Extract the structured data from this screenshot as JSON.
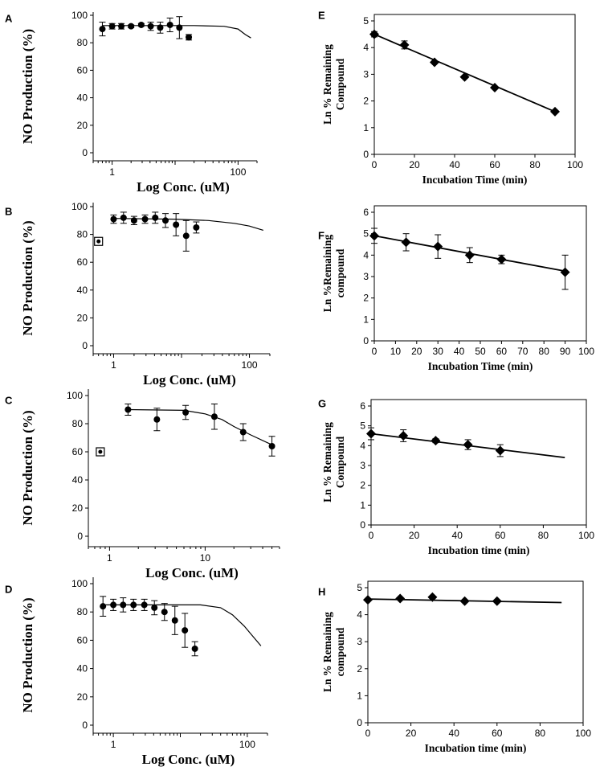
{
  "chart_data": [
    {
      "panel": "A",
      "type": "scatter",
      "xscale": "log",
      "xlabel": "Log  Conc.  (uM)",
      "ylabel": "NO  Production  (%)",
      "ylim": [
        0,
        100
      ],
      "yticks": [
        "0",
        "20",
        "40",
        "60",
        "80",
        "100"
      ],
      "xlim": [
        0.5,
        200
      ],
      "xticks": [
        {
          "v": 1,
          "label": "1"
        },
        {
          "v": 100,
          "label": "100"
        }
      ],
      "points": [
        {
          "x": 0.7,
          "y": 90,
          "err": 5
        },
        {
          "x": 1.0,
          "y": 92,
          "err": 2
        },
        {
          "x": 1.4,
          "y": 92,
          "err": 2
        },
        {
          "x": 2.0,
          "y": 92,
          "err": 1
        },
        {
          "x": 2.9,
          "y": 93,
          "err": 1
        },
        {
          "x": 4.1,
          "y": 92,
          "err": 3
        },
        {
          "x": 5.8,
          "y": 91,
          "err": 4
        },
        {
          "x": 8.3,
          "y": 93,
          "err": 5
        },
        {
          "x": 11.7,
          "y": 91,
          "err": 8
        },
        {
          "x": 16.5,
          "y": 84,
          "err": 2
        }
      ],
      "fit": [
        [
          0.7,
          92.5
        ],
        [
          20,
          92.5
        ],
        [
          60,
          92
        ],
        [
          100,
          90
        ],
        [
          130,
          86
        ],
        [
          160,
          83.5
        ]
      ],
      "control": null
    },
    {
      "panel": "B",
      "type": "scatter",
      "xscale": "log",
      "xlabel": "Log  Conc.  (uM)",
      "ylabel": "NO  Production  (%)",
      "ylim": [
        0,
        100
      ],
      "yticks": [
        "0",
        "20",
        "40",
        "60",
        "80",
        "100"
      ],
      "xlim": [
        0.5,
        200
      ],
      "xticks": [
        {
          "v": 1,
          "label": "1"
        },
        {
          "v": 100,
          "label": "100"
        }
      ],
      "points": [
        {
          "x": 1.0,
          "y": 91,
          "err": 3
        },
        {
          "x": 1.4,
          "y": 92,
          "err": 4
        },
        {
          "x": 2.0,
          "y": 90,
          "err": 3
        },
        {
          "x": 2.9,
          "y": 91,
          "err": 3
        },
        {
          "x": 4.1,
          "y": 92,
          "err": 4
        },
        {
          "x": 5.8,
          "y": 90,
          "err": 5
        },
        {
          "x": 8.3,
          "y": 87,
          "err": 8
        },
        {
          "x": 11.7,
          "y": 79,
          "err": 11
        },
        {
          "x": 16.5,
          "y": 85,
          "err": 4
        }
      ],
      "fit": [
        [
          1.0,
          91.5
        ],
        [
          8,
          91
        ],
        [
          25,
          90
        ],
        [
          60,
          88
        ],
        [
          100,
          86
        ],
        [
          160,
          83
        ]
      ],
      "control": {
        "x": 0.6,
        "y": 75
      }
    },
    {
      "panel": "C",
      "type": "scatter",
      "xscale": "log",
      "xlabel": "Log  Conc.  (uM)",
      "ylabel": "NO  Production  (%)",
      "ylim": [
        0,
        100
      ],
      "yticks": [
        "0",
        "20",
        "40",
        "60",
        "80",
        "100"
      ],
      "xlim": [
        0.6,
        60
      ],
      "xticks": [
        {
          "v": 1,
          "label": "1"
        },
        {
          "v": 10,
          "label": "10"
        }
      ],
      "points": [
        {
          "x": 1.56,
          "y": 90,
          "err": 4
        },
        {
          "x": 3.13,
          "y": 83,
          "err": 8
        },
        {
          "x": 6.25,
          "y": 88,
          "err": 5
        },
        {
          "x": 12.5,
          "y": 85,
          "err": 9
        },
        {
          "x": 25,
          "y": 74,
          "err": 6
        },
        {
          "x": 50,
          "y": 64,
          "err": 7
        }
      ],
      "fit": [
        [
          1.56,
          90
        ],
        [
          6,
          89.5
        ],
        [
          10,
          87
        ],
        [
          15,
          83
        ],
        [
          20,
          78
        ],
        [
          30,
          72
        ],
        [
          50,
          65
        ]
      ],
      "control": {
        "x": 0.8,
        "y": 60
      }
    },
    {
      "panel": "D",
      "type": "scatter",
      "xscale": "log",
      "xlabel": "Log  Conc.  (uM)",
      "ylabel": "NO  Production  (%)",
      "ylim": [
        0,
        100
      ],
      "yticks": [
        "0",
        "20",
        "40",
        "60",
        "80",
        "100"
      ],
      "xlim": [
        0.5,
        200
      ],
      "xticks": [
        {
          "v": 1,
          "label": "1"
        },
        {
          "v": 100,
          "label": "100"
        }
      ],
      "points": [
        {
          "x": 0.7,
          "y": 84,
          "err": 7
        },
        {
          "x": 1.0,
          "y": 85,
          "err": 4
        },
        {
          "x": 1.4,
          "y": 85,
          "err": 5
        },
        {
          "x": 2.0,
          "y": 85,
          "err": 4
        },
        {
          "x": 2.9,
          "y": 85,
          "err": 4
        },
        {
          "x": 4.1,
          "y": 83,
          "err": 5
        },
        {
          "x": 5.8,
          "y": 80,
          "err": 6
        },
        {
          "x": 8.3,
          "y": 74,
          "err": 10
        },
        {
          "x": 11.7,
          "y": 67,
          "err": 12
        },
        {
          "x": 16.5,
          "y": 54,
          "err": 5
        }
      ],
      "fit": [
        [
          0.7,
          85
        ],
        [
          20,
          85
        ],
        [
          40,
          83
        ],
        [
          60,
          78
        ],
        [
          90,
          70
        ],
        [
          120,
          63
        ],
        [
          160,
          56
        ]
      ],
      "control": null
    },
    {
      "panel": "E",
      "type": "scatter",
      "xscale": "linear",
      "xlabel": "Incubation Time (min)",
      "ylabel": [
        "Ln % Remaining",
        "Compound"
      ],
      "ylim": [
        0,
        5
      ],
      "yticks": [
        "0",
        "1",
        "2",
        "3",
        "4",
        "5"
      ],
      "xlim": [
        0,
        100
      ],
      "xticks": [
        "0",
        "20",
        "40",
        "60",
        "80",
        "100"
      ],
      "points": [
        {
          "x": 0,
          "y": 4.5,
          "err": 0.1
        },
        {
          "x": 15,
          "y": 4.1,
          "err": 0.15
        },
        {
          "x": 30,
          "y": 3.45,
          "err": 0.05
        },
        {
          "x": 45,
          "y": 2.9,
          "err": 0.05
        },
        {
          "x": 60,
          "y": 2.5,
          "err": 0
        },
        {
          "x": 90,
          "y": 1.6,
          "err": 0
        }
      ],
      "fit": [
        [
          0,
          4.5
        ],
        [
          90,
          1.6
        ]
      ]
    },
    {
      "panel": "F",
      "type": "scatter",
      "xscale": "linear",
      "xlabel": "Incubation Time (min)",
      "ylabel": [
        "Ln %Remaining",
        "compound"
      ],
      "ylim": [
        0,
        6
      ],
      "yticks": [
        "0",
        "1",
        "2",
        "3",
        "4",
        "5",
        "6"
      ],
      "xlim": [
        0,
        100
      ],
      "xticks": [
        "0",
        "10",
        "20",
        "30",
        "40",
        "50",
        "60",
        "70",
        "80",
        "90",
        "100"
      ],
      "points": [
        {
          "x": 0,
          "y": 4.9,
          "err": 0.35
        },
        {
          "x": 15,
          "y": 4.6,
          "err": 0.4
        },
        {
          "x": 30,
          "y": 4.4,
          "err": 0.55
        },
        {
          "x": 45,
          "y": 4.0,
          "err": 0.35
        },
        {
          "x": 60,
          "y": 3.8,
          "err": 0.2
        },
        {
          "x": 90,
          "y": 3.2,
          "err": 0.8
        }
      ],
      "fit": [
        [
          0,
          4.9
        ],
        [
          90,
          3.25
        ]
      ]
    },
    {
      "panel": "G",
      "type": "scatter",
      "xscale": "linear",
      "xlabel": "Incubation time (min)",
      "ylabel": [
        "Ln % Remaining",
        "Compound"
      ],
      "ylim": [
        0,
        6
      ],
      "yticks": [
        "0",
        "1",
        "2",
        "3",
        "4",
        "5",
        "6"
      ],
      "xlim": [
        0,
        100
      ],
      "xticks": [
        "0",
        "20",
        "40",
        "60",
        "80",
        "100"
      ],
      "points": [
        {
          "x": 0,
          "y": 4.6,
          "err": 0.3
        },
        {
          "x": 15,
          "y": 4.5,
          "err": 0.3
        },
        {
          "x": 30,
          "y": 4.25,
          "err": 0.1
        },
        {
          "x": 45,
          "y": 4.05,
          "err": 0.25
        },
        {
          "x": 60,
          "y": 3.75,
          "err": 0.3
        }
      ],
      "fit": [
        [
          0,
          4.6
        ],
        [
          90,
          3.4
        ]
      ]
    },
    {
      "panel": "H",
      "type": "scatter",
      "xscale": "linear",
      "xlabel": "Incubation time (min)",
      "ylabel": [
        "Ln % Remaining",
        "compound"
      ],
      "ylim": [
        0,
        5
      ],
      "yticks": [
        "0",
        "1",
        "2",
        "3",
        "4",
        "5"
      ],
      "xlim": [
        0,
        100
      ],
      "xticks": [
        "0",
        "20",
        "40",
        "60",
        "80",
        "100"
      ],
      "points": [
        {
          "x": 0,
          "y": 4.55,
          "err": 0
        },
        {
          "x": 15,
          "y": 4.6,
          "err": 0
        },
        {
          "x": 30,
          "y": 4.65,
          "err": 0
        },
        {
          "x": 45,
          "y": 4.5,
          "err": 0
        },
        {
          "x": 60,
          "y": 4.5,
          "err": 0
        }
      ],
      "fit": [
        [
          0,
          4.58
        ],
        [
          90,
          4.45
        ]
      ]
    }
  ]
}
